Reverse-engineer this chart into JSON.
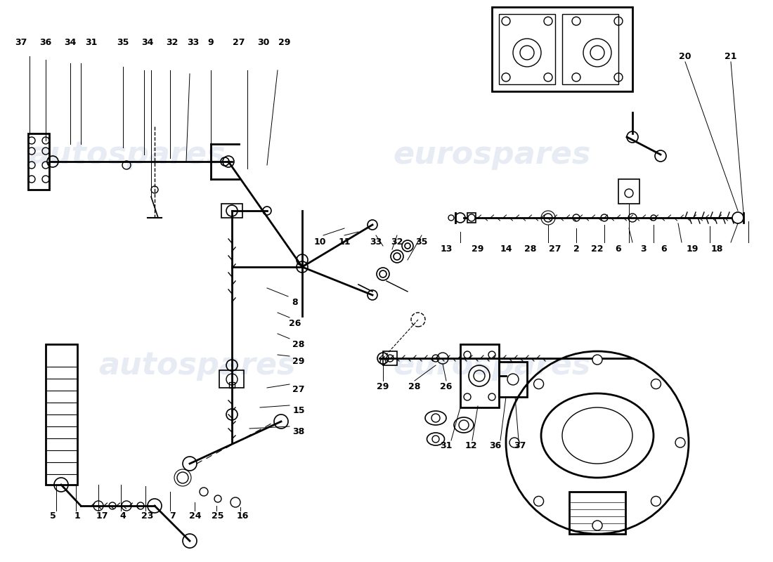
{
  "background_color": "#ffffff",
  "line_color": "#000000",
  "watermark_color": "#d0d8e8",
  "title": "",
  "fig_width": 11.0,
  "fig_height": 8.0,
  "dpi": 100,
  "label_fontsize": 9,
  "watermark_texts": [
    "autospares",
    "eurospares"
  ],
  "part_numbers_top_left": [
    "37",
    "36",
    "34",
    "31",
    "35",
    "34",
    "32",
    "33",
    "9",
    "27",
    "30",
    "29"
  ],
  "part_numbers_right_upper": [
    "29",
    "28",
    "26"
  ],
  "part_numbers_right_row": [
    "13",
    "29",
    "14",
    "28",
    "27",
    "2",
    "22",
    "6",
    "3",
    "6",
    "19",
    "18"
  ],
  "part_numbers_far_right": [
    "20",
    "21"
  ],
  "part_numbers_bottom_left": [
    "5",
    "1",
    "17",
    "4",
    "23",
    "7",
    "24",
    "25",
    "16"
  ],
  "part_numbers_bottom_mid": [
    "8",
    "26",
    "28",
    "29",
    "27",
    "15",
    "38"
  ],
  "part_numbers_center": [
    "10",
    "11",
    "33",
    "32",
    "35"
  ],
  "part_numbers_bottom_right": [
    "31",
    "12",
    "36",
    "37"
  ]
}
